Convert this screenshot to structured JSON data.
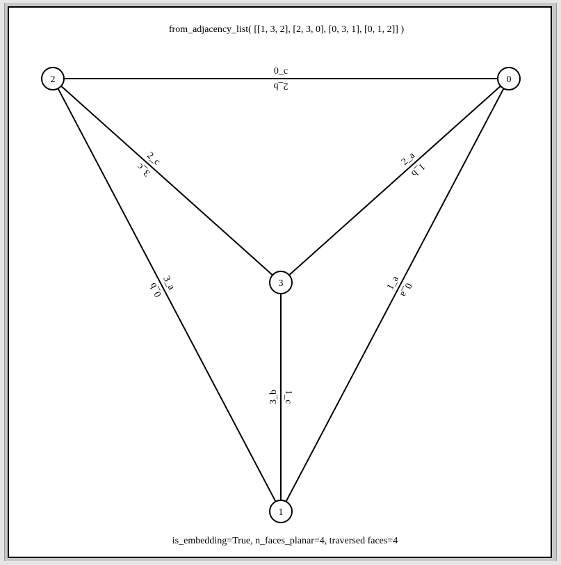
{
  "title": "from_adjacency_list( [[1, 3, 2], [2, 3, 0], [0, 3, 1], [0, 1, 2]]  )",
  "footer": "is_embedding=True,  n_faces_planar=4,  traversed faces=4",
  "colors": {
    "window_bg": "#c8c8c8",
    "canvas_bg": "#ffffff",
    "ink": "#000000"
  },
  "nodes": [
    {
      "id": "0",
      "label": "0"
    },
    {
      "id": "1",
      "label": "1"
    },
    {
      "id": "2",
      "label": "2"
    },
    {
      "id": "3",
      "label": "3"
    }
  ],
  "edges": [
    {
      "from": "2",
      "to": "0",
      "labels": [
        "0_c",
        "2_b"
      ]
    },
    {
      "from": "2",
      "to": "3",
      "labels": [
        "2_c",
        "3_c"
      ]
    },
    {
      "from": "0",
      "to": "3",
      "labels": [
        "2_a",
        "1_b"
      ]
    },
    {
      "from": "2",
      "to": "1",
      "labels": [
        "3_a",
        "0_b"
      ]
    },
    {
      "from": "0",
      "to": "1",
      "labels": [
        "1_a",
        "0_a"
      ]
    },
    {
      "from": "3",
      "to": "1",
      "labels": [
        "1_c",
        "3_b"
      ]
    }
  ]
}
